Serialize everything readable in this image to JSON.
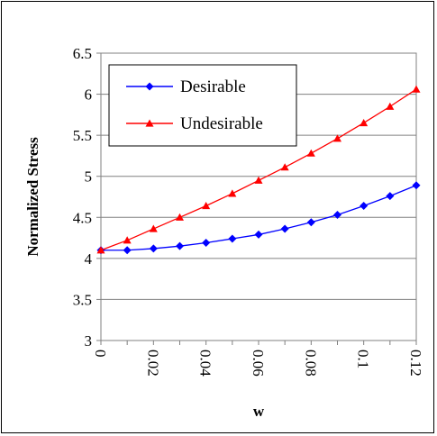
{
  "chart_data": {
    "type": "line",
    "title": "",
    "xlabel": "w",
    "ylabel": "Normalized Stress",
    "xlim": [
      0,
      0.12
    ],
    "ylim": [
      3,
      6.5
    ],
    "x_ticks": [
      "0",
      "0.02",
      "0.04",
      "0.06",
      "0.08",
      "0.1",
      "0.12"
    ],
    "y_ticks": [
      "3",
      "3.5",
      "4",
      "4.5",
      "5",
      "5.5",
      "6",
      "6.5"
    ],
    "grid": "horizontal",
    "legend_position": "top-left",
    "x": [
      0,
      0.01,
      0.02,
      0.03,
      0.04,
      0.05,
      0.06,
      0.07,
      0.08,
      0.09,
      0.1,
      0.11,
      0.12
    ],
    "series": [
      {
        "name": "Desirable",
        "color": "#0000ff",
        "marker": "diamond",
        "values": [
          4.1,
          4.1,
          4.12,
          4.15,
          4.19,
          4.24,
          4.29,
          4.36,
          4.44,
          4.53,
          4.64,
          4.76,
          4.89
        ]
      },
      {
        "name": "Undesirable",
        "color": "#ff0000",
        "marker": "triangle",
        "values": [
          4.1,
          4.22,
          4.36,
          4.5,
          4.64,
          4.79,
          4.95,
          5.11,
          5.28,
          5.46,
          5.65,
          5.85,
          6.06
        ]
      }
    ]
  }
}
